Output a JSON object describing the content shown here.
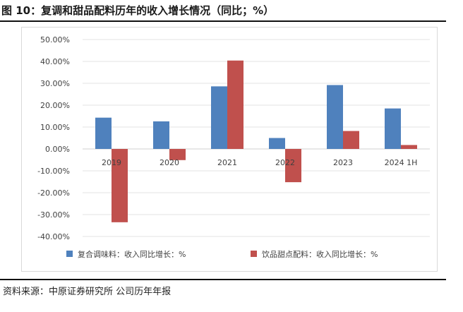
{
  "header": {
    "title": "图 10：复调和甜品配料历年的收入增长情况（同比；%）"
  },
  "footer": {
    "source": "资料来源：中原证券研究所  公司历年年报"
  },
  "colors": {
    "series1": "#4f81bd",
    "series2": "#c0504d"
  },
  "chart_data": {
    "type": "bar",
    "categories": [
      "2019",
      "2020",
      "2021",
      "2022",
      "2023",
      "2024 1H"
    ],
    "series": [
      {
        "name": "复合调味料：收入同比增长：%",
        "values": [
          14.3,
          12.6,
          28.6,
          5.0,
          29.2,
          18.5
        ]
      },
      {
        "name": "饮品甜点配料：收入同比增长：%",
        "values": [
          -33.5,
          -5.1,
          40.4,
          -15.2,
          8.2,
          1.8
        ]
      }
    ],
    "y_ticks": [
      "50.00%",
      "40.00%",
      "30.00%",
      "20.00%",
      "10.00%",
      "0.00%",
      "-10.00%",
      "-20.00%",
      "-30.00%",
      "-40.00%"
    ],
    "ylim": [
      -40,
      50
    ],
    "ystep": 10,
    "grid": true,
    "legend_position": "bottom"
  }
}
